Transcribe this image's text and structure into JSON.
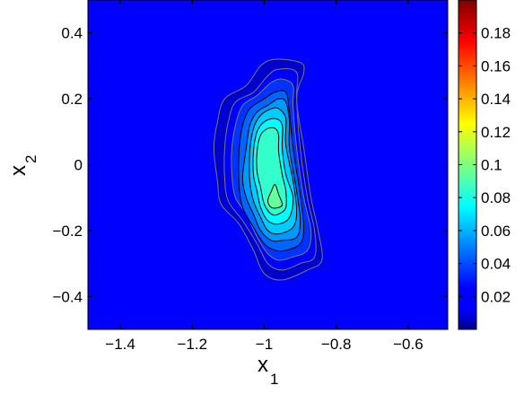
{
  "chart_data": {
    "type": "contour",
    "xlabel": {
      "base": "x",
      "sub": "1"
    },
    "ylabel": {
      "base": "x",
      "sub": "2"
    },
    "xlim": [
      -1.49,
      -0.49
    ],
    "ylim": [
      -0.5,
      0.5
    ],
    "x_ticks": [
      -1.4,
      -1.2,
      -1,
      -0.8,
      -0.6
    ],
    "x_tick_labels": [
      "−1.4",
      "−1.2",
      "−1",
      "−0.8",
      "−0.6"
    ],
    "y_ticks": [
      0.4,
      0.2,
      0,
      -0.2,
      -0.4
    ],
    "y_tick_labels": [
      "0.4",
      "0.2",
      "0",
      "−0.2",
      "−0.4"
    ],
    "colorbar": {
      "colormap": "jet",
      "range": [
        0,
        0.2
      ],
      "ticks": [
        0.02,
        0.04,
        0.06,
        0.08,
        0.1,
        0.12,
        0.14,
        0.16,
        0.18
      ],
      "tick_labels": [
        "0.02",
        "0.04",
        "0.06",
        "0.08",
        "0.1",
        "0.12",
        "0.14",
        "0.16",
        "0.18"
      ]
    },
    "contours": [
      {
        "level": 0.01,
        "points": [
          [
            -1.13,
            0.13
          ],
          [
            -1.11,
            0.2
          ],
          [
            -1.05,
            0.24
          ],
          [
            -1.01,
            0.3
          ],
          [
            -0.97,
            0.32
          ],
          [
            -0.9,
            0.31
          ],
          [
            -0.89,
            0.28
          ],
          [
            -0.91,
            0.2
          ],
          [
            -0.89,
            0.05
          ],
          [
            -0.87,
            -0.1
          ],
          [
            -0.85,
            -0.2
          ],
          [
            -0.84,
            -0.29
          ],
          [
            -0.88,
            -0.32
          ],
          [
            -0.95,
            -0.35
          ],
          [
            -1.0,
            -0.33
          ],
          [
            -1.03,
            -0.26
          ],
          [
            -1.07,
            -0.18
          ],
          [
            -1.12,
            -0.12
          ],
          [
            -1.13,
            -0.05
          ],
          [
            -1.14,
            0.05
          ]
        ]
      },
      {
        "level": 0.02,
        "points": [
          [
            -1.1,
            0.13
          ],
          [
            -1.08,
            0.19
          ],
          [
            -1.03,
            0.22
          ],
          [
            -0.99,
            0.27
          ],
          [
            -0.96,
            0.29
          ],
          [
            -0.91,
            0.28
          ],
          [
            -0.91,
            0.2
          ],
          [
            -0.9,
            0.05
          ],
          [
            -0.88,
            -0.1
          ],
          [
            -0.86,
            -0.2
          ],
          [
            -0.86,
            -0.28
          ],
          [
            -0.9,
            -0.3
          ],
          [
            -0.95,
            -0.32
          ],
          [
            -0.99,
            -0.3
          ],
          [
            -1.02,
            -0.24
          ],
          [
            -1.06,
            -0.17
          ],
          [
            -1.1,
            -0.11
          ],
          [
            -1.11,
            -0.04
          ],
          [
            -1.11,
            0.05
          ]
        ]
      },
      {
        "level": 0.03,
        "points": [
          [
            -1.08,
            0.12
          ],
          [
            -1.06,
            0.18
          ],
          [
            -1.02,
            0.21
          ],
          [
            -0.98,
            0.25
          ],
          [
            -0.95,
            0.26
          ],
          [
            -0.92,
            0.24
          ],
          [
            -0.92,
            0.18
          ],
          [
            -0.91,
            0.05
          ],
          [
            -0.89,
            -0.1
          ],
          [
            -0.87,
            -0.2
          ],
          [
            -0.88,
            -0.26
          ],
          [
            -0.92,
            -0.28
          ],
          [
            -0.96,
            -0.29
          ],
          [
            -0.99,
            -0.27
          ],
          [
            -1.02,
            -0.22
          ],
          [
            -1.05,
            -0.15
          ],
          [
            -1.08,
            -0.1
          ],
          [
            -1.09,
            -0.03
          ],
          [
            -1.09,
            0.05
          ]
        ]
      },
      {
        "level": 0.04,
        "points": [
          [
            -1.06,
            0.12
          ],
          [
            -1.04,
            0.17
          ],
          [
            -1.0,
            0.2
          ],
          [
            -0.97,
            0.22
          ],
          [
            -0.94,
            0.22
          ],
          [
            -0.93,
            0.16
          ],
          [
            -0.92,
            0.05
          ],
          [
            -0.9,
            -0.09
          ],
          [
            -0.89,
            -0.19
          ],
          [
            -0.9,
            -0.24
          ],
          [
            -0.94,
            -0.26
          ],
          [
            -0.97,
            -0.26
          ],
          [
            -1.0,
            -0.24
          ],
          [
            -1.03,
            -0.19
          ],
          [
            -1.06,
            -0.13
          ],
          [
            -1.07,
            -0.06
          ],
          [
            -1.07,
            0.04
          ]
        ]
      },
      {
        "level": 0.05,
        "points": [
          [
            -1.04,
            0.12
          ],
          [
            -1.02,
            0.16
          ],
          [
            -0.99,
            0.18
          ],
          [
            -0.96,
            0.2
          ],
          [
            -0.94,
            0.19
          ],
          [
            -0.93,
            0.13
          ],
          [
            -0.93,
            0.05
          ],
          [
            -0.91,
            -0.08
          ],
          [
            -0.9,
            -0.17
          ],
          [
            -0.91,
            -0.22
          ],
          [
            -0.95,
            -0.23
          ],
          [
            -0.98,
            -0.23
          ],
          [
            -1.01,
            -0.2
          ],
          [
            -1.03,
            -0.15
          ],
          [
            -1.05,
            -0.1
          ],
          [
            -1.06,
            -0.04
          ],
          [
            -1.05,
            0.05
          ]
        ]
      },
      {
        "level": 0.06,
        "points": [
          [
            -1.03,
            0.11
          ],
          [
            -1.01,
            0.15
          ],
          [
            -0.98,
            0.17
          ],
          [
            -0.96,
            0.17
          ],
          [
            -0.94,
            0.14
          ],
          [
            -0.94,
            0.06
          ],
          [
            -0.92,
            -0.05
          ],
          [
            -0.91,
            -0.14
          ],
          [
            -0.92,
            -0.19
          ],
          [
            -0.96,
            -0.21
          ],
          [
            -0.99,
            -0.2
          ],
          [
            -1.01,
            -0.16
          ],
          [
            -1.03,
            -0.11
          ],
          [
            -1.04,
            -0.05
          ],
          [
            -1.04,
            0.04
          ]
        ]
      },
      {
        "level": 0.07,
        "points": [
          [
            -1.02,
            0.1
          ],
          [
            -1.0,
            0.13
          ],
          [
            -0.97,
            0.14
          ],
          [
            -0.95,
            0.12
          ],
          [
            -0.95,
            0.05
          ],
          [
            -0.94,
            -0.03
          ],
          [
            -0.92,
            -0.1
          ],
          [
            -0.93,
            -0.16
          ],
          [
            -0.96,
            -0.18
          ],
          [
            -0.99,
            -0.17
          ],
          [
            -1.01,
            -0.13
          ],
          [
            -1.02,
            -0.08
          ],
          [
            -1.03,
            -0.03
          ],
          [
            -1.03,
            0.04
          ]
        ]
      },
      {
        "level": 0.08,
        "points": [
          [
            -1.01,
            0.09
          ],
          [
            -0.99,
            0.11
          ],
          [
            -0.97,
            0.11
          ],
          [
            -0.96,
            0.09
          ],
          [
            -0.96,
            0.04
          ],
          [
            -0.95,
            -0.03
          ],
          [
            -0.94,
            -0.08
          ],
          [
            -0.94,
            -0.13
          ],
          [
            -0.96,
            -0.15
          ],
          [
            -0.98,
            -0.15
          ],
          [
            -1.0,
            -0.12
          ],
          [
            -1.01,
            -0.07
          ],
          [
            -1.02,
            -0.02
          ],
          [
            -1.02,
            0.04
          ]
        ]
      },
      {
        "level": 0.09,
        "points": [
          [
            -0.97,
            -0.06
          ],
          [
            -0.96,
            -0.09
          ],
          [
            -0.95,
            -0.12
          ],
          [
            -0.96,
            -0.13
          ],
          [
            -0.98,
            -0.13
          ],
          [
            -0.99,
            -0.11
          ],
          [
            -0.98,
            -0.08
          ]
        ]
      }
    ]
  }
}
